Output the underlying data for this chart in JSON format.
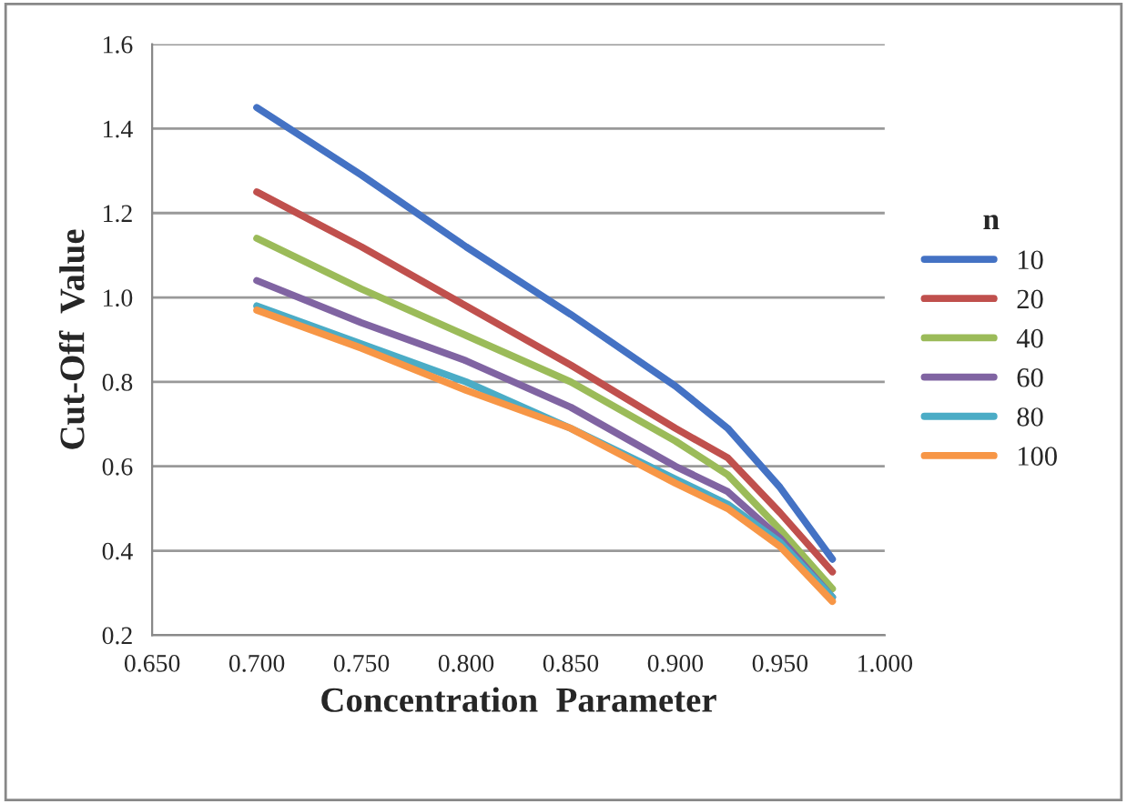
{
  "chart_data": {
    "type": "line",
    "xlabel": "Concentration  Parameter",
    "ylabel": "Cut-Off  Value",
    "legend_title": "n",
    "x": [
      0.7,
      0.75,
      0.8,
      0.85,
      0.9,
      0.925,
      0.95,
      0.975
    ],
    "series": [
      {
        "name": "10",
        "color": "#4472c4",
        "values": [
          1.45,
          1.29,
          1.12,
          0.96,
          0.79,
          0.69,
          0.55,
          0.38
        ]
      },
      {
        "name": "20",
        "color": "#c0504d",
        "values": [
          1.25,
          1.12,
          0.98,
          0.84,
          0.69,
          0.62,
          0.49,
          0.35
        ]
      },
      {
        "name": "40",
        "color": "#9bbb59",
        "values": [
          1.14,
          1.02,
          0.91,
          0.8,
          0.66,
          0.58,
          0.45,
          0.31
        ]
      },
      {
        "name": "60",
        "color": "#8064a2",
        "values": [
          1.04,
          0.94,
          0.85,
          0.74,
          0.6,
          0.54,
          0.43,
          0.29
        ]
      },
      {
        "name": "80",
        "color": "#4bacc6",
        "values": [
          0.98,
          0.89,
          0.8,
          0.69,
          0.57,
          0.51,
          0.42,
          0.29
        ]
      },
      {
        "name": "100",
        "color": "#f79646",
        "values": [
          0.97,
          0.88,
          0.78,
          0.69,
          0.56,
          0.5,
          0.41,
          0.28
        ]
      }
    ],
    "xlim": [
      0.65,
      1.0
    ],
    "xticks": [
      {
        "value": 0.65,
        "label": "0.650"
      },
      {
        "value": 0.7,
        "label": "0.700"
      },
      {
        "value": 0.75,
        "label": "0.750"
      },
      {
        "value": 0.8,
        "label": "0.800"
      },
      {
        "value": 0.85,
        "label": "0.850"
      },
      {
        "value": 0.9,
        "label": "0.900"
      },
      {
        "value": 0.95,
        "label": "0.950"
      },
      {
        "value": 1.0,
        "label": "1.000"
      }
    ],
    "ylim": [
      0.2,
      1.6
    ],
    "yticks": [
      0.2,
      0.4,
      0.6,
      0.8,
      {
        "value": 1.0,
        "label": "1.0"
      },
      1.2,
      1.4,
      1.6
    ],
    "grid": "y",
    "legend": "right",
    "marker": "none",
    "line_style": "solid"
  }
}
